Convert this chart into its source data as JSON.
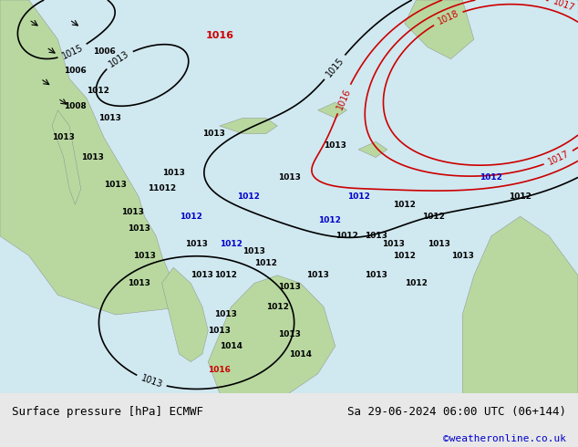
{
  "title_left": "Surface pressure [hPa] ECMWF",
  "title_right": "Sa 29-06-2024 06:00 UTC (06+144)",
  "credit": "©weatheronline.co.uk",
  "bg_color": "#d0e8f0",
  "land_color": "#b8d8a0",
  "label_fontsize": 9,
  "credit_color": "#0000cc",
  "footer_bg": "#e8e8e8",
  "isobar_color_black": "#000000",
  "isobar_color_red": "#cc0000",
  "isobar_color_blue": "#0000cc"
}
